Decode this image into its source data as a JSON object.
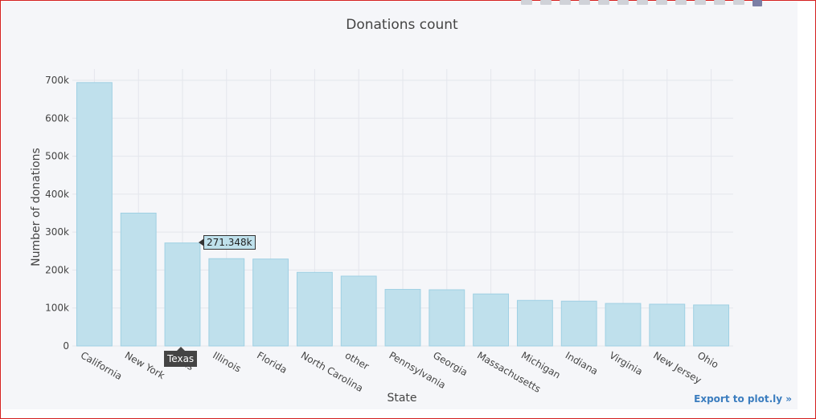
{
  "toolbar": {
    "icons": [
      "camera-icon",
      "zoom-icon",
      "pan-icon",
      "box-select-icon",
      "lasso-icon",
      "zoom-in-icon",
      "zoom-out-icon",
      "autoscale-icon",
      "reset-axes-icon",
      "spike-lines-icon",
      "hover-closest-icon",
      "hover-compare-icon",
      "plotly-logo-icon"
    ]
  },
  "export_link": "Export to plot.ly »",
  "tooltip": {
    "value": "271.348k",
    "category": "Texas"
  },
  "colors": {
    "bar_fill": "#bfe0ec",
    "bar_stroke": "#9fd0e3",
    "grid": "#e4e6ec",
    "axis_text": "#444444"
  },
  "chart_data": {
    "type": "bar",
    "title": "Donations count",
    "xlabel": "State",
    "ylabel": "Number of donations",
    "categories": [
      "California",
      "New York",
      "Texas",
      "Illinois",
      "Florida",
      "North Carolina",
      "other",
      "Pennsylvania",
      "Georgia",
      "Massachusetts",
      "Michigan",
      "Indiana",
      "Virginia",
      "New Jersey",
      "Ohio"
    ],
    "values": [
      694000,
      350000,
      271348,
      230000,
      229000,
      194000,
      184000,
      149000,
      148000,
      137000,
      120000,
      118000,
      112000,
      110000,
      108000
    ],
    "ylim": [
      0,
      700000
    ],
    "yticks": [
      0,
      100000,
      200000,
      300000,
      400000,
      500000,
      600000,
      700000
    ],
    "ytick_labels": [
      "0",
      "100k",
      "200k",
      "300k",
      "400k",
      "500k",
      "600k",
      "700k"
    ],
    "grid": true,
    "legend": "none"
  }
}
